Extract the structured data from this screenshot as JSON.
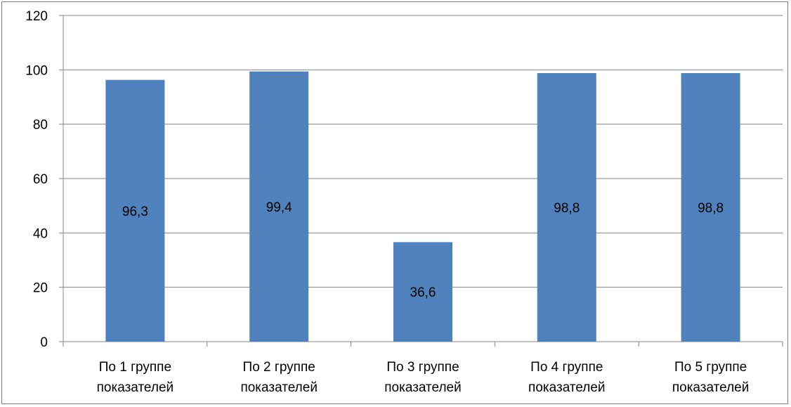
{
  "chart_data": {
    "type": "bar",
    "categories": [
      [
        "По 1 группе",
        "показателей"
      ],
      [
        "По 2 группе",
        "показателей"
      ],
      [
        "По 3 группе",
        "показателей"
      ],
      [
        "По 4 группе",
        "показателей"
      ],
      [
        "По 5 группе",
        "показателей"
      ]
    ],
    "values": [
      96.3,
      99.4,
      36.6,
      98.8,
      98.8
    ],
    "data_labels": [
      "96,3",
      "99,4",
      "36,6",
      "98,8",
      "98,8"
    ],
    "yticks": [
      "0",
      "20",
      "40",
      "60",
      "80",
      "100",
      "120"
    ],
    "ylim": [
      0,
      120
    ],
    "title": "",
    "xlabel": "",
    "ylabel": "",
    "grid": true,
    "legend": "none",
    "colors": {
      "bar": "#4f81bd",
      "grid": "#868686",
      "axis": "#868686"
    }
  }
}
